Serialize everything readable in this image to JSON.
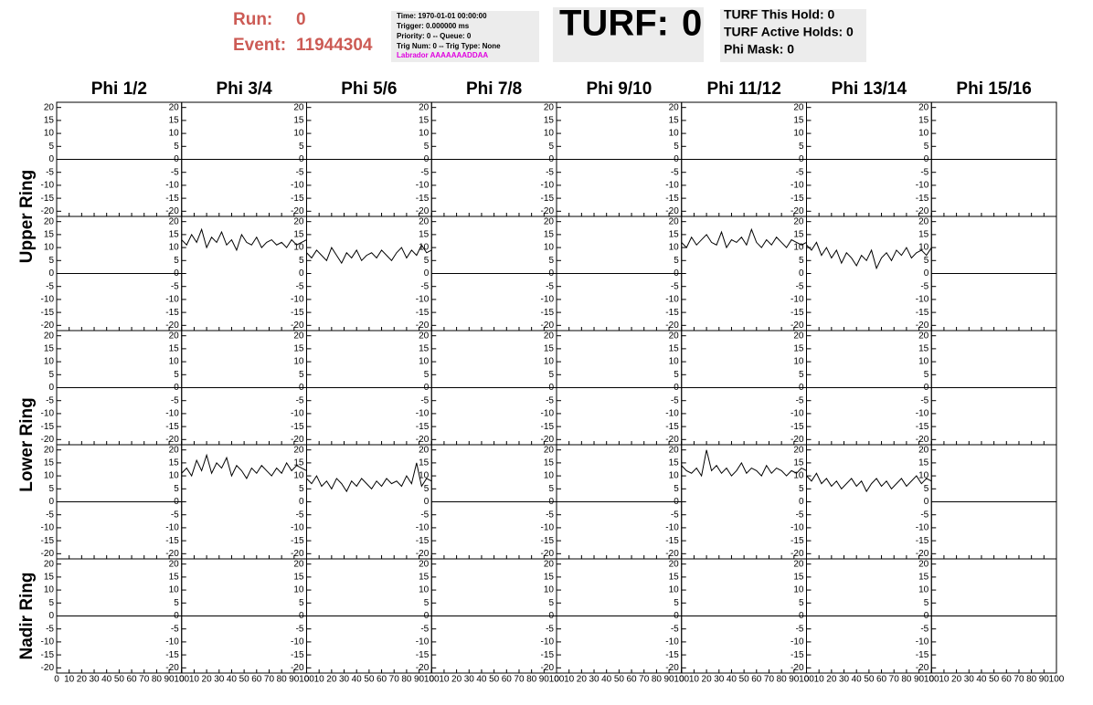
{
  "header": {
    "run_label": "Run:",
    "run": 0,
    "event_label": "Event:",
    "event": 11944304,
    "info": [
      "Time: 1970-01-01 00:00:00",
      "Trigger: 0.000000 ms",
      "Priority: 0 -- Queue: 0",
      "Trig Num: 0 -- Trig Type: None",
      "Labrador AAAAAAADDAA"
    ],
    "turf_label": "TURF:",
    "turf": 0,
    "turf_info": [
      "TURF This Hold: 0",
      "TURF Active Holds: 0",
      "Phi Mask: 0"
    ]
  },
  "column_titles": [
    "Phi 1/2",
    "Phi 3/4",
    "Phi 5/6",
    "Phi 7/8",
    "Phi 9/10",
    "Phi 11/12",
    "Phi 13/14",
    "Phi 15/16"
  ],
  "row_titles": [
    "Upper Ring",
    "Lower Ring",
    "Nadir Ring"
  ],
  "chart_data": {
    "type": "line",
    "color": "#000000",
    "xlim": [
      0,
      100
    ],
    "xticks": [
      0,
      10,
      20,
      30,
      40,
      50,
      60,
      70,
      80,
      90,
      100
    ],
    "ylim": [
      -22,
      22
    ],
    "yticks": [
      20,
      15,
      10,
      5,
      0,
      -5,
      -10,
      -15,
      -20
    ],
    "series": [
      {
        "x": [
          0,
          100
        ],
        "values": [
          0,
          0
        ]
      },
      {
        "x": [
          0,
          100
        ],
        "values": [
          0,
          0
        ]
      },
      {
        "x": [
          0,
          100
        ],
        "values": [
          0,
          0
        ]
      },
      {
        "x": [
          0,
          100
        ],
        "values": [
          0,
          0
        ]
      },
      {
        "x": [
          0,
          100
        ],
        "values": [
          0,
          0
        ]
      },
      {
        "x": [
          0,
          100
        ],
        "values": [
          0,
          0
        ]
      },
      {
        "x": [
          0,
          100
        ],
        "values": [
          0,
          0
        ]
      },
      {
        "x": [
          0,
          100
        ],
        "values": [
          0,
          0
        ]
      },
      {
        "x": [
          0,
          100
        ],
        "values": [
          0,
          0
        ]
      },
      {
        "x": [
          0,
          4,
          8,
          12,
          16,
          20,
          24,
          28,
          32,
          36,
          40,
          44,
          48,
          52,
          56,
          60,
          64,
          68,
          72,
          76,
          80,
          84,
          88,
          92,
          96,
          100
        ],
        "values": [
          13,
          11,
          15,
          12,
          17,
          10,
          14,
          12,
          16,
          11,
          13,
          9,
          15,
          12,
          11,
          14,
          10,
          12,
          13,
          11,
          12,
          10,
          13,
          11,
          12,
          13
        ]
      },
      {
        "x": [
          0,
          4,
          8,
          12,
          16,
          20,
          24,
          28,
          32,
          36,
          40,
          44,
          48,
          52,
          56,
          60,
          64,
          68,
          72,
          76,
          80,
          84,
          88,
          92,
          96,
          100
        ],
        "values": [
          8,
          6,
          9,
          7,
          5,
          10,
          7,
          4,
          8,
          6,
          9,
          5,
          7,
          8,
          6,
          9,
          7,
          5,
          8,
          10,
          6,
          9,
          7,
          11,
          8,
          9
        ]
      },
      {
        "x": [
          0,
          100
        ],
        "values": [
          0,
          0
        ]
      },
      {
        "x": [
          0,
          100
        ],
        "values": [
          0,
          0
        ]
      },
      {
        "x": [
          0,
          4,
          8,
          12,
          16,
          20,
          24,
          28,
          32,
          36,
          40,
          44,
          48,
          52,
          56,
          60,
          64,
          68,
          72,
          76,
          80,
          84,
          88,
          92,
          96,
          100
        ],
        "values": [
          12,
          10,
          14,
          11,
          13,
          15,
          12,
          11,
          16,
          10,
          13,
          12,
          14,
          11,
          17,
          12,
          10,
          13,
          11,
          14,
          12,
          10,
          13,
          12,
          11,
          12
        ]
      },
      {
        "x": [
          0,
          4,
          8,
          12,
          16,
          20,
          24,
          28,
          32,
          36,
          40,
          44,
          48,
          52,
          56,
          60,
          64,
          68,
          72,
          76,
          80,
          84,
          88,
          92,
          96,
          100
        ],
        "values": [
          11,
          9,
          12,
          7,
          10,
          6,
          9,
          4,
          8,
          6,
          3,
          7,
          5,
          9,
          2,
          6,
          8,
          5,
          9,
          7,
          10,
          6,
          8,
          9,
          7,
          10
        ]
      },
      {
        "x": [
          0,
          100
        ],
        "values": [
          0,
          0
        ]
      },
      {
        "x": [
          0,
          100
        ],
        "values": [
          0,
          0
        ]
      },
      {
        "x": [
          0,
          100
        ],
        "values": [
          0,
          0
        ]
      },
      {
        "x": [
          0,
          100
        ],
        "values": [
          0,
          0
        ]
      },
      {
        "x": [
          0,
          100
        ],
        "values": [
          0,
          0
        ]
      },
      {
        "x": [
          0,
          100
        ],
        "values": [
          0,
          0
        ]
      },
      {
        "x": [
          0,
          100
        ],
        "values": [
          0,
          0
        ]
      },
      {
        "x": [
          0,
          100
        ],
        "values": [
          0,
          0
        ]
      },
      {
        "x": [
          0,
          100
        ],
        "values": [
          0,
          0
        ]
      },
      {
        "x": [
          0,
          100
        ],
        "values": [
          0,
          0
        ]
      },
      {
        "x": [
          0,
          4,
          8,
          12,
          16,
          20,
          24,
          28,
          32,
          36,
          40,
          44,
          48,
          52,
          56,
          60,
          64,
          68,
          72,
          76,
          80,
          84,
          88,
          92,
          96,
          100
        ],
        "values": [
          11,
          13,
          10,
          16,
          12,
          18,
          11,
          15,
          13,
          17,
          10,
          14,
          12,
          9,
          13,
          11,
          14,
          12,
          10,
          13,
          11,
          15,
          12,
          14,
          13,
          12
        ]
      },
      {
        "x": [
          0,
          4,
          8,
          12,
          16,
          20,
          24,
          28,
          32,
          36,
          40,
          44,
          48,
          52,
          56,
          60,
          64,
          68,
          72,
          76,
          80,
          84,
          88,
          92,
          96,
          100
        ],
        "values": [
          9,
          7,
          10,
          6,
          8,
          5,
          9,
          7,
          4,
          8,
          6,
          9,
          7,
          5,
          8,
          6,
          9,
          7,
          8,
          6,
          10,
          7,
          15,
          6,
          9,
          8
        ]
      },
      {
        "x": [
          0,
          100
        ],
        "values": [
          0,
          0
        ]
      },
      {
        "x": [
          0,
          100
        ],
        "values": [
          0,
          0
        ]
      },
      {
        "x": [
          0,
          4,
          8,
          12,
          16,
          20,
          24,
          28,
          32,
          36,
          40,
          44,
          48,
          52,
          56,
          60,
          64,
          68,
          72,
          76,
          80,
          84,
          88,
          92,
          96,
          100
        ],
        "values": [
          14,
          12,
          11,
          13,
          10,
          20,
          12,
          14,
          11,
          13,
          10,
          12,
          15,
          11,
          13,
          12,
          10,
          14,
          11,
          13,
          12,
          10,
          12,
          11,
          13,
          12
        ]
      },
      {
        "x": [
          0,
          4,
          8,
          12,
          16,
          20,
          24,
          28,
          32,
          36,
          40,
          44,
          48,
          52,
          56,
          60,
          64,
          68,
          72,
          76,
          80,
          84,
          88,
          92,
          96,
          100
        ],
        "values": [
          10,
          8,
          11,
          7,
          9,
          6,
          8,
          5,
          7,
          9,
          6,
          8,
          4,
          7,
          9,
          6,
          8,
          5,
          7,
          9,
          6,
          8,
          10,
          7,
          9,
          8
        ]
      },
      {
        "x": [
          0,
          100
        ],
        "values": [
          0,
          0
        ]
      },
      {
        "x": [
          0,
          100
        ],
        "values": [
          0,
          0
        ]
      },
      {
        "x": [
          0,
          100
        ],
        "values": [
          0,
          0
        ]
      },
      {
        "x": [
          0,
          100
        ],
        "values": [
          0,
          0
        ]
      },
      {
        "x": [
          0,
          100
        ],
        "values": [
          0,
          0
        ]
      },
      {
        "x": [
          0,
          100
        ],
        "values": [
          0,
          0
        ]
      },
      {
        "x": [
          0,
          100
        ],
        "values": [
          0,
          0
        ]
      },
      {
        "x": [
          0,
          100
        ],
        "values": [
          0,
          0
        ]
      },
      {
        "x": [
          0,
          100
        ],
        "values": [
          0,
          0
        ]
      }
    ]
  }
}
